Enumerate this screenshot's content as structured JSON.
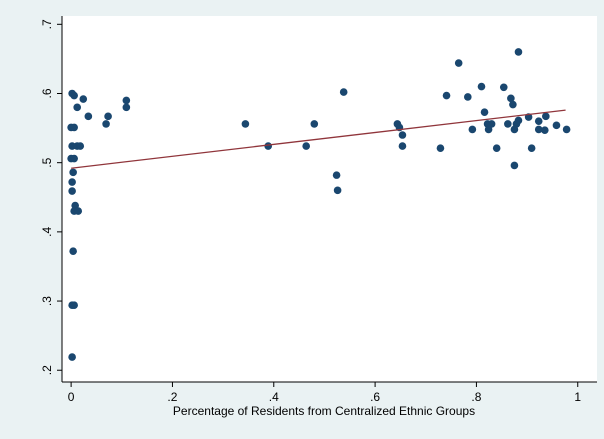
{
  "chart_data": {
    "type": "scatter",
    "xlabel": "Percentage of Residents from Centralized Ethnic Groups",
    "xlim": [
      -0.018,
      1.038
    ],
    "ylim": [
      0.183,
      0.712
    ],
    "xticks": [
      0,
      {
        "value": 0.2,
        "label": ".2"
      },
      {
        "value": 0.4,
        "label": ".4"
      },
      {
        "value": 0.6,
        "label": ".6"
      },
      {
        "value": 0.8,
        "label": ".8"
      },
      1
    ],
    "yticks": [
      {
        "value": 0.2,
        "label": ".2"
      },
      {
        "value": 0.3,
        "label": ".3"
      },
      {
        "value": 0.4,
        "label": ".4"
      },
      {
        "value": 0.5,
        "label": ".5"
      },
      {
        "value": 0.6,
        "label": ".6"
      },
      {
        "value": 0.7,
        "label": ".7"
      }
    ],
    "series": [
      {
        "color": "#1a476f",
        "x": [
          0.002,
          0.006,
          0,
          0.006,
          0.002,
          0.012,
          0,
          0.006,
          0.004,
          0.002,
          0.002,
          0.008,
          0.006,
          0.014,
          0.004,
          0.002,
          0.006,
          0.002,
          0.012,
          0.024,
          0.034,
          0.018,
          0.069,
          0.073,
          0.109,
          0.109,
          0.344,
          0.389,
          0.464,
          0.48,
          0.538,
          0.524,
          0.526,
          0.644,
          0.648,
          0.654,
          0.654,
          0.729,
          0.741,
          0.765,
          0.783,
          0.792,
          0.81,
          0.816,
          0.822,
          0.824,
          0.83,
          0.84,
          0.854,
          0.862,
          0.868,
          0.872,
          0.875,
          0.875,
          0.883,
          0.879,
          0.883,
          0.903,
          0.909,
          0.923,
          0.923,
          0.937,
          0.935,
          0.958,
          0.978
        ],
        "values": [
          0.6,
          0.597,
          0.551,
          0.551,
          0.524,
          0.524,
          0.506,
          0.506,
          0.486,
          0.472,
          0.459,
          0.438,
          0.43,
          0.43,
          0.372,
          0.294,
          0.294,
          0.219,
          0.58,
          0.592,
          0.567,
          0.524,
          0.556,
          0.567,
          0.59,
          0.58,
          0.556,
          0.524,
          0.524,
          0.556,
          0.602,
          0.482,
          0.46,
          0.556,
          0.551,
          0.54,
          0.524,
          0.521,
          0.597,
          0.644,
          0.595,
          0.548,
          0.61,
          0.573,
          0.556,
          0.548,
          0.556,
          0.521,
          0.609,
          0.556,
          0.593,
          0.584,
          0.548,
          0.496,
          0.66,
          0.556,
          0.561,
          0.566,
          0.521,
          0.56,
          0.548,
          0.567,
          0.547,
          0.554,
          0.548
        ]
      },
      {
        "type": "line",
        "color": "#90353b",
        "x": [
          0,
          0.976
        ],
        "values": [
          0.492,
          0.576
        ]
      }
    ]
  }
}
